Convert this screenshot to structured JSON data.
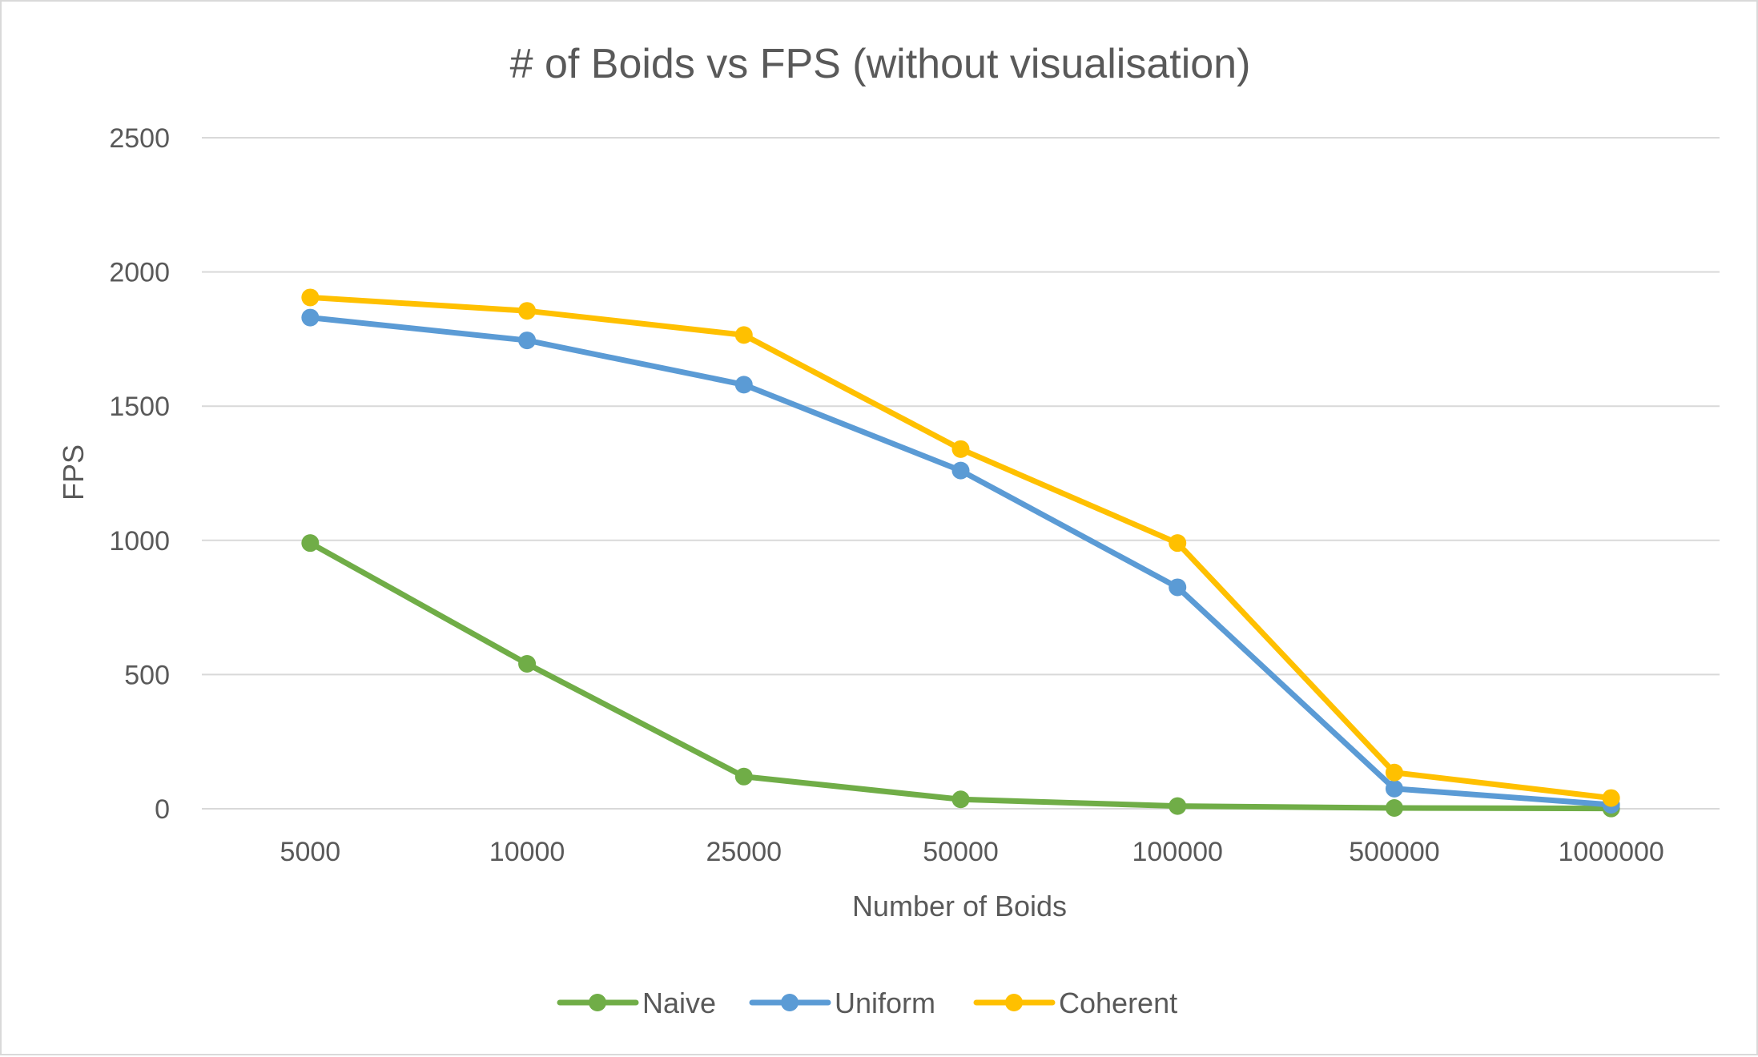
{
  "chart_data": {
    "type": "line",
    "title": "# of Boids vs FPS (without visualisation)",
    "xlabel": "Number of Boids",
    "ylabel": "FPS",
    "categories": [
      "5000",
      "10000",
      "25000",
      "50000",
      "100000",
      "500000",
      "1000000"
    ],
    "ylim": [
      0,
      2500
    ],
    "yticks": [
      "0",
      "500",
      "1000",
      "1500",
      "2000",
      "2500"
    ],
    "grid": "horizontal",
    "legend_position": "bottom",
    "series": [
      {
        "name": "Naive",
        "color": "#70ad47",
        "values": [
          990,
          540,
          120,
          35,
          10,
          3,
          1
        ]
      },
      {
        "name": "Uniform",
        "color": "#5b9bd5",
        "values": [
          1830,
          1745,
          1580,
          1260,
          825,
          75,
          15
        ]
      },
      {
        "name": "Coherent",
        "color": "#ffc000",
        "values": [
          1905,
          1855,
          1765,
          1340,
          990,
          135,
          40
        ]
      }
    ]
  }
}
